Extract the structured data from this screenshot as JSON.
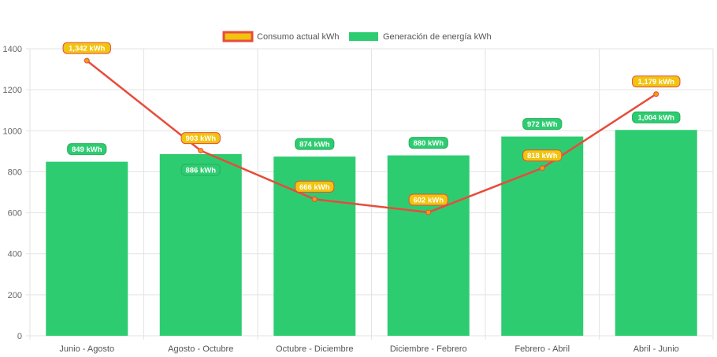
{
  "chart_data": {
    "type": "bar",
    "title": "",
    "xlabel": "",
    "ylabel": "",
    "ylim": [
      0,
      1400
    ],
    "yticks": [
      0,
      200,
      400,
      600,
      800,
      1000,
      1200,
      1400
    ],
    "grid": true,
    "legend_position": "top",
    "categories": [
      "Junio - Agosto",
      "Agosto - Octubre",
      "Octubre - Diciembre",
      "Diciembre - Febrero",
      "Febrero - Abril",
      "Abril - Junio"
    ],
    "series": [
      {
        "name": "Consumo actual kWh",
        "type": "line",
        "color": "#e74c3c",
        "fill": "#f1c40f",
        "values": [
          1342,
          903,
          666,
          602,
          818,
          1179
        ],
        "labels": [
          "1,342 kWh",
          "903 kWh",
          "666 kWh",
          "602 kWh",
          "818 kWh",
          "1,179 kWh"
        ]
      },
      {
        "name": "Generación de energía kWh",
        "type": "bar",
        "color": "#2ecc71",
        "values": [
          849,
          886,
          874,
          880,
          972,
          1004
        ],
        "labels": [
          "849 kWh",
          "886 kWh",
          "874 kWh",
          "880 kWh",
          "972 kWh",
          "1,004 kWh"
        ]
      }
    ]
  }
}
